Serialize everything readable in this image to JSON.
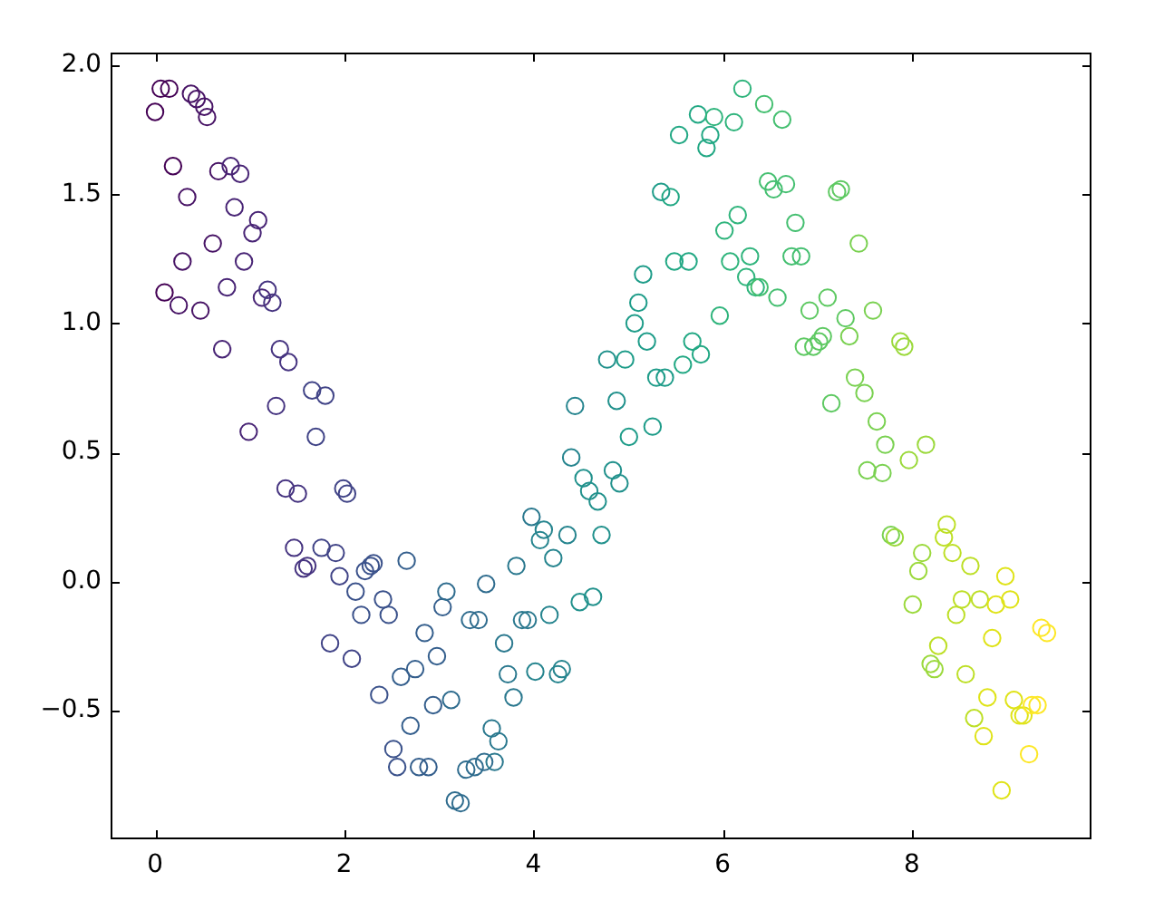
{
  "chart_data": {
    "type": "scatter",
    "marker": "circle",
    "x": [
      0,
      0.06,
      0.1,
      0.15,
      0.19,
      0.25,
      0.29,
      0.34,
      0.38,
      0.44,
      0.48,
      0.52,
      0.55,
      0.61,
      0.67,
      0.71,
      0.76,
      0.8,
      0.84,
      0.9,
      0.94,
      0.99,
      1.03,
      1.09,
      1.13,
      1.19,
      1.24,
      1.28,
      1.32,
      1.38,
      1.41,
      1.47,
      1.51,
      1.57,
      1.61,
      1.66,
      1.7,
      1.76,
      1.8,
      1.85,
      1.91,
      1.95,
      1.99,
      2.03,
      2.08,
      2.12,
      2.18,
      2.22,
      2.28,
      2.31,
      2.37,
      2.41,
      2.47,
      2.52,
      2.56,
      2.6,
      2.66,
      2.7,
      2.75,
      2.79,
      2.85,
      2.89,
      2.94,
      2.98,
      3.04,
      3.08,
      3.13,
      3.17,
      3.23,
      3.29,
      3.33,
      3.38,
      3.42,
      3.48,
      3.5,
      3.56,
      3.59,
      3.63,
      3.69,
      3.73,
      3.79,
      3.82,
      3.88,
      3.94,
      3.98,
      4.02,
      4.07,
      4.11,
      4.17,
      4.21,
      4.26,
      4.3,
      4.36,
      4.4,
      4.44,
      4.49,
      4.53,
      4.59,
      4.63,
      4.68,
      4.72,
      4.78,
      4.84,
      4.88,
      4.91,
      4.97,
      5.01,
      5.07,
      5.11,
      5.16,
      5.2,
      5.26,
      5.3,
      5.35,
      5.39,
      5.45,
      5.49,
      5.54,
      5.58,
      5.64,
      5.68,
      5.74,
      5.77,
      5.83,
      5.87,
      5.91,
      5.97,
      6.02,
      6.08,
      6.12,
      6.16,
      6.21,
      6.25,
      6.29,
      6.35,
      6.39,
      6.44,
      6.48,
      6.54,
      6.58,
      6.63,
      6.67,
      6.73,
      6.77,
      6.83,
      6.86,
      6.92,
      6.96,
      7.02,
      7.06,
      7.11,
      7.15,
      7.21,
      7.25,
      7.3,
      7.34,
      7.4,
      7.44,
      7.5,
      7.53,
      7.59,
      7.63,
      7.69,
      7.72,
      7.78,
      7.82,
      7.88,
      7.92,
      7.97,
      8.01,
      8.07,
      8.11,
      8.15,
      8.2,
      8.24,
      8.28,
      8.34,
      8.37,
      8.43,
      8.47,
      8.53,
      8.57,
      8.62,
      8.66,
      8.72,
      8.76,
      8.8,
      8.85,
      8.89,
      8.95,
      8.99,
      9.04,
      9.08,
      9.14,
      9.18,
      9.24,
      9.27,
      9.33,
      9.37,
      9.43
    ],
    "values": [
      1.82,
      1.91,
      1.12,
      1.91,
      1.61,
      1.07,
      1.24,
      1.49,
      1.89,
      1.87,
      1.05,
      1.84,
      1.8,
      1.31,
      1.59,
      0.9,
      1.14,
      1.61,
      1.45,
      1.58,
      1.24,
      0.58,
      1.35,
      1.4,
      1.1,
      1.13,
      1.08,
      0.68,
      0.9,
      0.36,
      0.85,
      0.13,
      0.34,
      0.05,
      0.06,
      0.74,
      0.56,
      0.13,
      0.72,
      -0.24,
      0.11,
      0.02,
      0.36,
      0.34,
      -0.3,
      -0.04,
      -0.13,
      0.04,
      0.06,
      0.07,
      -0.44,
      -0.07,
      -0.13,
      -0.65,
      -0.72,
      -0.37,
      0.08,
      -0.56,
      -0.34,
      -0.72,
      -0.2,
      -0.72,
      -0.48,
      -0.29,
      -0.1,
      -0.04,
      -0.46,
      -0.85,
      -0.86,
      -0.73,
      -0.15,
      -0.72,
      -0.15,
      -0.7,
      -0.01,
      -0.57,
      -0.7,
      -0.62,
      -0.24,
      -0.36,
      -0.45,
      0.06,
      -0.15,
      -0.15,
      0.25,
      -0.35,
      0.16,
      0.2,
      -0.13,
      0.09,
      -0.36,
      -0.34,
      0.18,
      0.48,
      0.68,
      -0.08,
      0.4,
      0.35,
      -0.06,
      0.31,
      0.18,
      0.86,
      0.43,
      0.7,
      0.38,
      0.86,
      0.56,
      1.0,
      1.08,
      1.19,
      0.93,
      0.6,
      0.79,
      1.51,
      0.79,
      1.49,
      1.24,
      1.73,
      0.84,
      1.24,
      0.93,
      1.81,
      0.88,
      1.68,
      1.73,
      1.8,
      1.03,
      1.36,
      1.24,
      1.78,
      1.42,
      1.91,
      1.18,
      1.26,
      1.14,
      1.14,
      1.85,
      1.55,
      1.52,
      1.1,
      1.79,
      1.54,
      1.26,
      1.39,
      1.26,
      0.91,
      1.05,
      0.91,
      0.93,
      0.95,
      1.1,
      0.69,
      1.51,
      1.52,
      1.02,
      0.95,
      0.79,
      1.31,
      0.73,
      0.43,
      1.05,
      0.62,
      0.42,
      0.53,
      0.18,
      0.17,
      0.93,
      0.91,
      0.47,
      -0.09,
      0.04,
      0.11,
      0.53,
      -0.32,
      -0.34,
      -0.25,
      0.17,
      0.22,
      0.11,
      -0.13,
      -0.07,
      -0.36,
      0.06,
      -0.53,
      -0.07,
      -0.6,
      -0.45,
      -0.22,
      -0.09,
      -0.81,
      0.02,
      -0.07,
      -0.46,
      -0.52,
      -0.52,
      -0.67,
      -0.48,
      -0.48,
      -0.18,
      -0.2
    ],
    "colors": [
      "#440154",
      "#440154",
      "#440154",
      "#440154",
      "#440154",
      "#471365",
      "#471365",
      "#471365",
      "#471365",
      "#471365",
      "#471365",
      "#471365",
      "#471365",
      "#471365",
      "#471365",
      "#482475",
      "#482475",
      "#482475",
      "#482475",
      "#482475",
      "#482475",
      "#482475",
      "#482475",
      "#482475",
      "#482475",
      "#463480",
      "#463480",
      "#463480",
      "#463480",
      "#463480",
      "#463480",
      "#463480",
      "#463480",
      "#463480",
      "#463480",
      "#414487",
      "#414487",
      "#414487",
      "#414487",
      "#414487",
      "#414487",
      "#414487",
      "#414487",
      "#414487",
      "#414487",
      "#3b528b",
      "#3b528b",
      "#3b528b",
      "#3b528b",
      "#3b528b",
      "#3b528b",
      "#3b528b",
      "#3b528b",
      "#3b528b",
      "#3b528b",
      "#355f8d",
      "#355f8d",
      "#355f8d",
      "#355f8d",
      "#355f8d",
      "#355f8d",
      "#355f8d",
      "#355f8d",
      "#355f8d",
      "#355f8d",
      "#2f6c8e",
      "#2f6c8e",
      "#2f6c8e",
      "#2f6c8e",
      "#2f6c8e",
      "#2f6c8e",
      "#2f6c8e",
      "#2f6c8e",
      "#2f6c8e",
      "#2f6c8e",
      "#2a788e",
      "#2a788e",
      "#2a788e",
      "#2a788e",
      "#2a788e",
      "#2a788e",
      "#2a788e",
      "#2a788e",
      "#2a788e",
      "#2a788e",
      "#25848e",
      "#25848e",
      "#25848e",
      "#25848e",
      "#25848e",
      "#25848e",
      "#25848e",
      "#25848e",
      "#25848e",
      "#25848e",
      "#21918c",
      "#21918c",
      "#21918c",
      "#21918c",
      "#21918c",
      "#21918c",
      "#21918c",
      "#21918c",
      "#21918c",
      "#21918c",
      "#1e9c89",
      "#1e9c89",
      "#1e9c89",
      "#1e9c89",
      "#1e9c89",
      "#1e9c89",
      "#1e9c89",
      "#1e9c89",
      "#1e9c89",
      "#1e9c89",
      "#22a884",
      "#22a884",
      "#22a884",
      "#22a884",
      "#22a884",
      "#22a884",
      "#22a884",
      "#22a884",
      "#22a884",
      "#22a884",
      "#2fb47c",
      "#2fb47c",
      "#2fb47c",
      "#2fb47c",
      "#2fb47c",
      "#2fb47c",
      "#2fb47c",
      "#2fb47c",
      "#2fb47c",
      "#2fb47c",
      "#44bf70",
      "#44bf70",
      "#44bf70",
      "#44bf70",
      "#44bf70",
      "#44bf70",
      "#44bf70",
      "#44bf70",
      "#44bf70",
      "#44bf70",
      "#5ec962",
      "#5ec962",
      "#5ec962",
      "#5ec962",
      "#5ec962",
      "#5ec962",
      "#5ec962",
      "#5ec962",
      "#5ec962",
      "#5ec962",
      "#7ad151",
      "#7ad151",
      "#7ad151",
      "#7ad151",
      "#7ad151",
      "#7ad151",
      "#7ad151",
      "#7ad151",
      "#7ad151",
      "#7ad151",
      "#9bd93c",
      "#9bd93c",
      "#9bd93c",
      "#9bd93c",
      "#9bd93c",
      "#9bd93c",
      "#9bd93c",
      "#9bd93c",
      "#9bd93c",
      "#9bd93c",
      "#bddf26",
      "#bddf26",
      "#bddf26",
      "#bddf26",
      "#bddf26",
      "#bddf26",
      "#bddf26",
      "#bddf26",
      "#bddf26",
      "#bddf26",
      "#dfe318",
      "#dfe318",
      "#dfe318",
      "#dfe318",
      "#dfe318",
      "#dfe318",
      "#dfe318",
      "#dfe318",
      "#dfe318",
      "#dfe318",
      "#fde725",
      "#fde725",
      "#fde725",
      "#fde725",
      "#fde725"
    ],
    "xlim": [
      -0.47,
      9.9
    ],
    "ylim": [
      -1.0,
      2.05
    ],
    "xticks": [
      0,
      2,
      4,
      6,
      8
    ],
    "yticks": [
      {
        "value": -0.5,
        "label": "−0.5"
      },
      {
        "value": 0,
        "label": "0.0"
      },
      0.5,
      {
        "value": 1,
        "label": "1.0"
      },
      1.5,
      {
        "value": 2,
        "label": "2.0"
      }
    ]
  }
}
